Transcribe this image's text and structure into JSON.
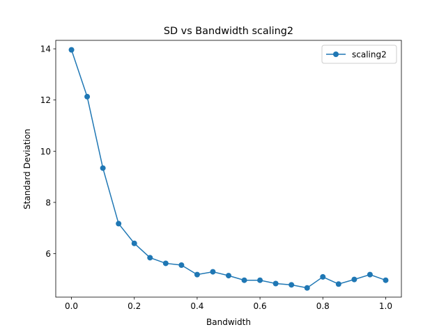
{
  "chart_data": {
    "type": "line",
    "title": "SD vs Bandwidth scaling2",
    "xlabel": "Bandwidth",
    "ylabel": "Standard Deviation",
    "xlim": [
      -0.05,
      1.05
    ],
    "ylim": [
      4.3,
      14.33
    ],
    "xticks": [
      0.0,
      0.2,
      0.4,
      0.6,
      0.8,
      1.0
    ],
    "xtick_labels": [
      "0.0",
      "0.2",
      "0.4",
      "0.6",
      "0.8",
      "1.0"
    ],
    "yticks": [
      6,
      8,
      10,
      12,
      14
    ],
    "ytick_labels": [
      "6",
      "8",
      "10",
      "12",
      "14"
    ],
    "grid": false,
    "legend_position": "top-right",
    "series": [
      {
        "name": "scaling2",
        "color": "#1f77b4",
        "marker": "circle",
        "x": [
          0.0,
          0.05,
          0.1,
          0.15,
          0.2,
          0.25,
          0.3,
          0.35,
          0.4,
          0.45,
          0.5,
          0.55,
          0.6,
          0.65,
          0.7,
          0.75,
          0.8,
          0.85,
          0.9,
          0.95,
          1.0
        ],
        "y": [
          13.96,
          12.13,
          9.34,
          7.17,
          6.4,
          5.84,
          5.62,
          5.55,
          5.18,
          5.29,
          5.14,
          4.96,
          4.96,
          4.83,
          4.78,
          4.66,
          5.09,
          4.81,
          4.99,
          5.18,
          4.96
        ]
      }
    ]
  }
}
